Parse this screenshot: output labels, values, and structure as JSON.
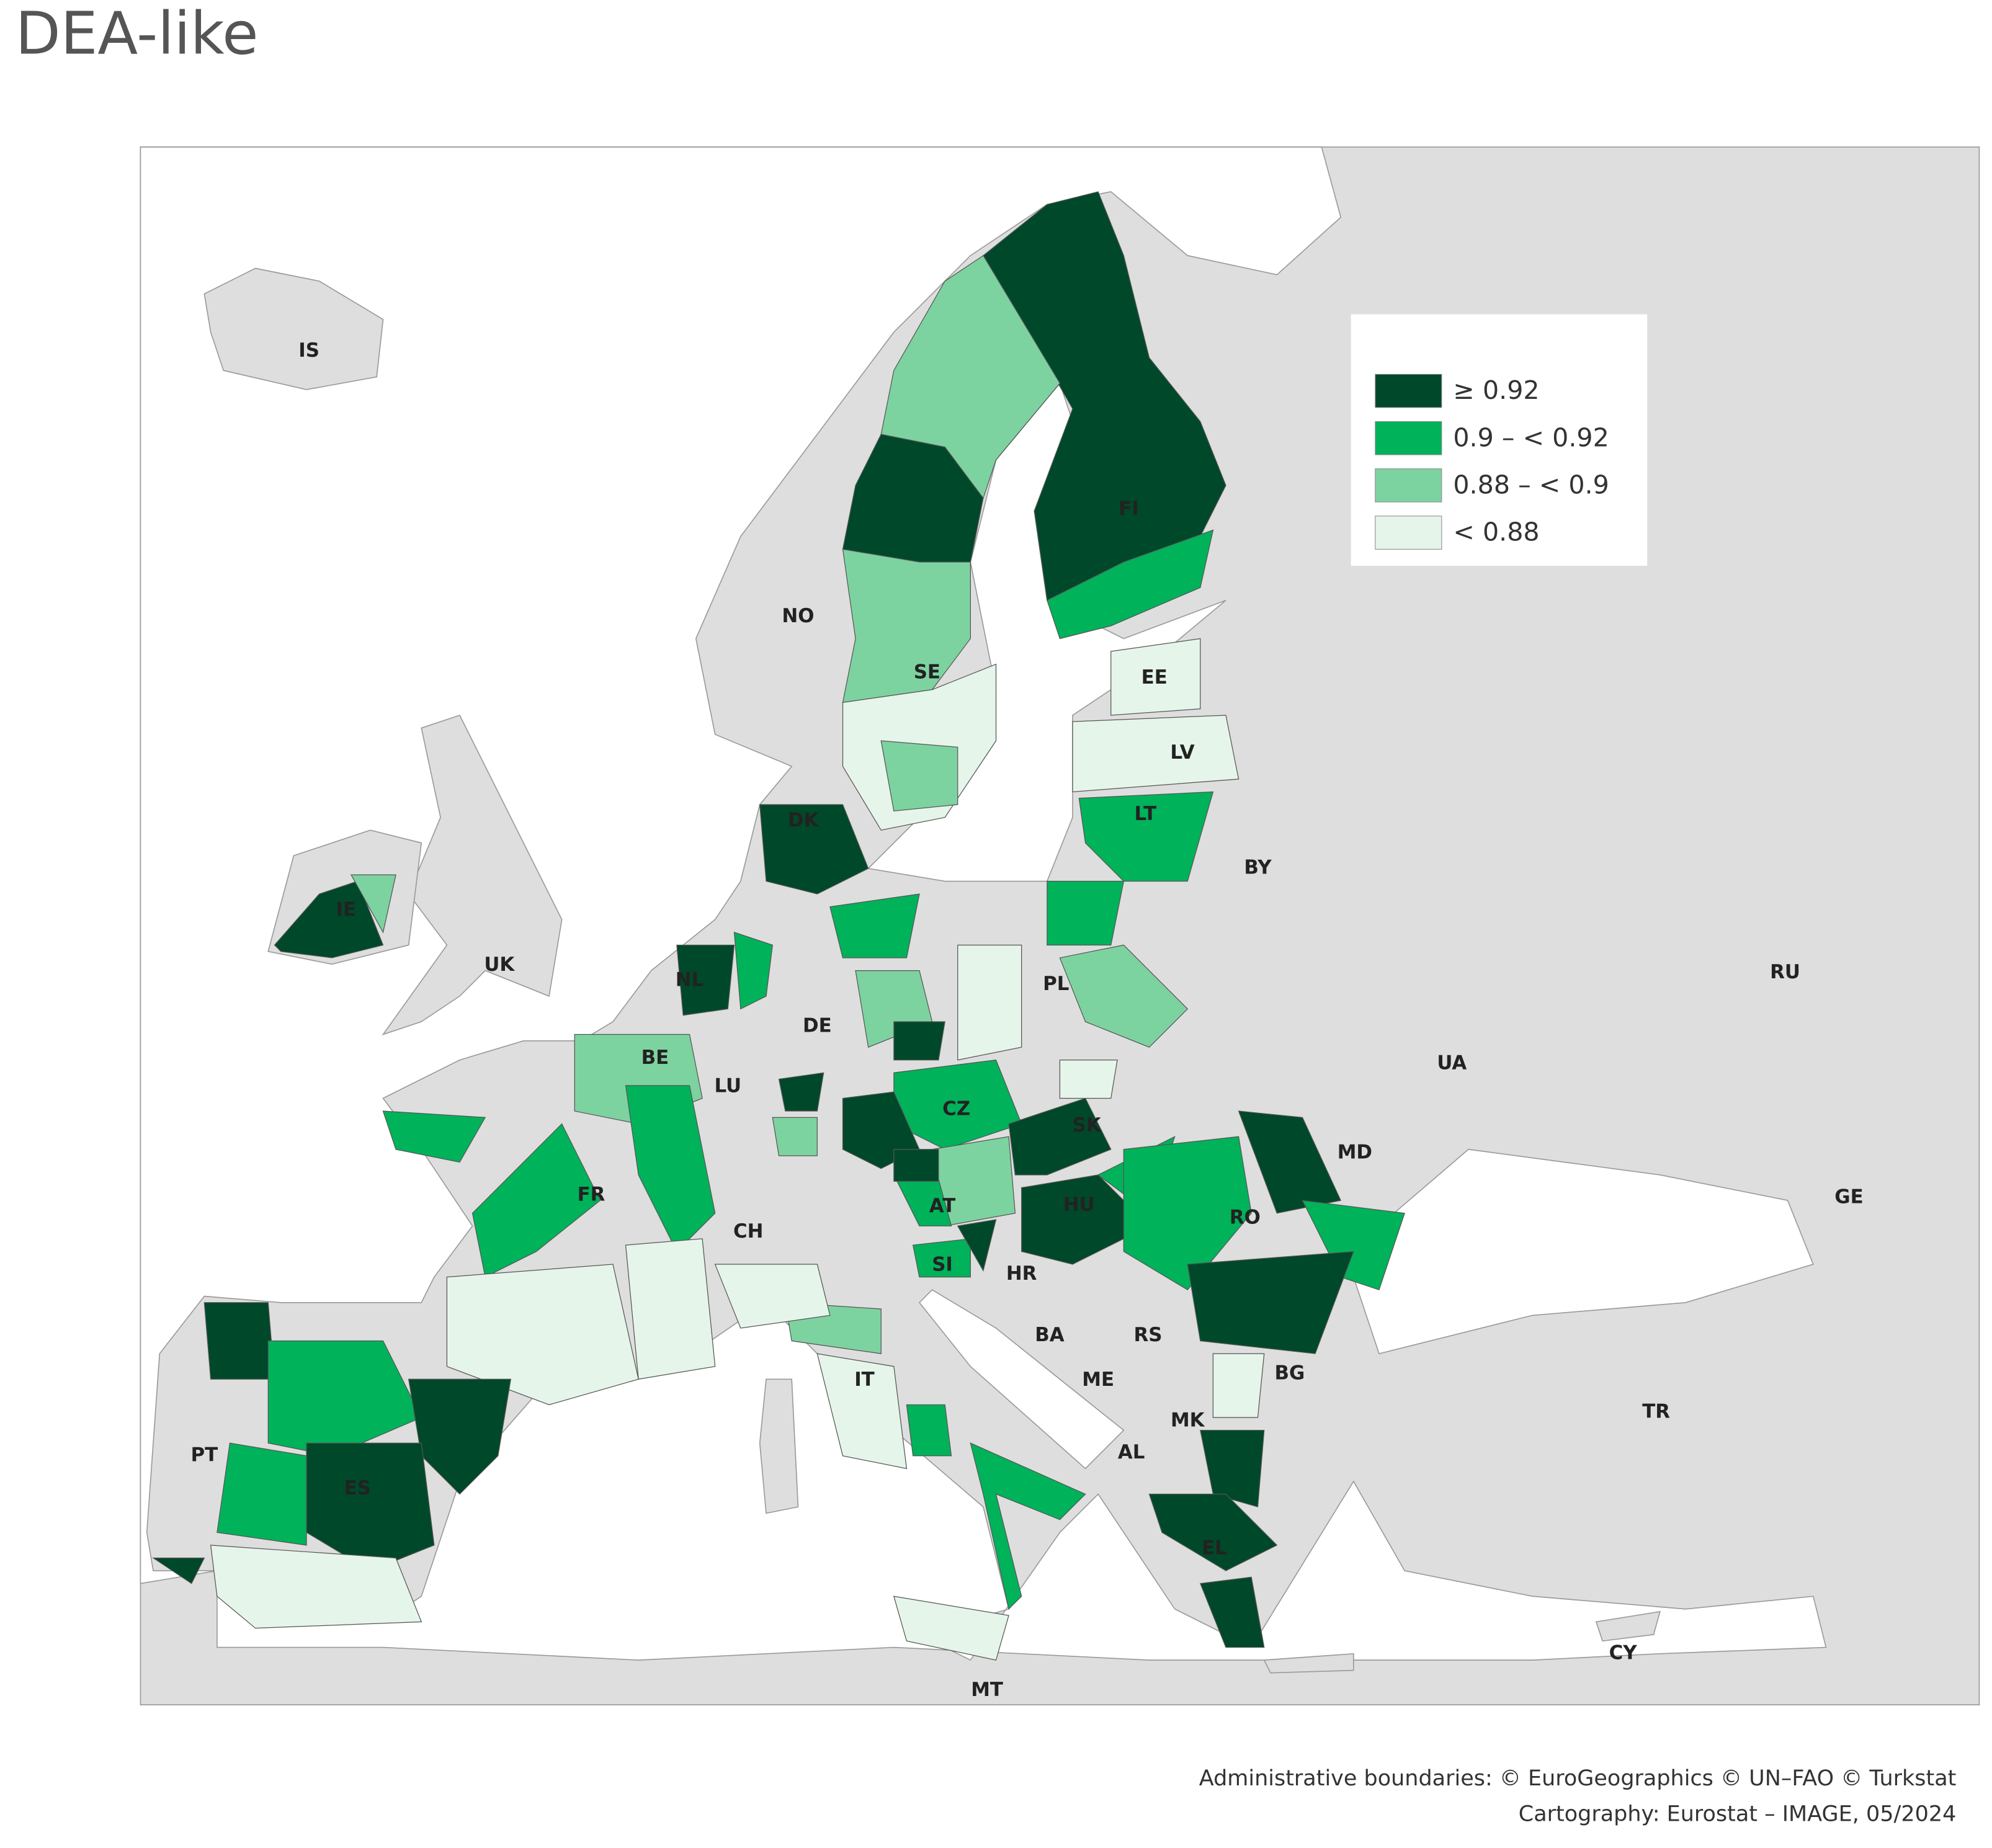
{
  "title": "DEA-like",
  "legend": [
    {
      "label": "≥ 0.92",
      "color": "#00482a"
    },
    {
      "label": "0.9 – < 0.92",
      "color": "#00b25a"
    },
    {
      "label": "0.88 – < 0.9",
      "color": "#7dd3a0"
    },
    {
      "label": "< 0.88",
      "color": "#e5f5ea"
    }
  ],
  "country_labels": [
    "IS",
    "NO",
    "SE",
    "FI",
    "EE",
    "LV",
    "LT",
    "DK",
    "IE",
    "UK",
    "NL",
    "BY",
    "PL",
    "RU",
    "DE",
    "BE",
    "LU",
    "UA",
    "CZ",
    "SK",
    "MD",
    "FR",
    "CH",
    "AT",
    "HU",
    "RO",
    "GE",
    "SI",
    "HR",
    "BA",
    "RS",
    "ES",
    "PT",
    "IT",
    "ME",
    "BG",
    "MK",
    "AL",
    "TR",
    "EL",
    "CY",
    "MT"
  ],
  "credits": [
    "Administrative boundaries: © EuroGeographics © UN–FAO © Turkstat",
    "Cartography: Eurostat – IMAGE, 05/2024"
  ]
}
